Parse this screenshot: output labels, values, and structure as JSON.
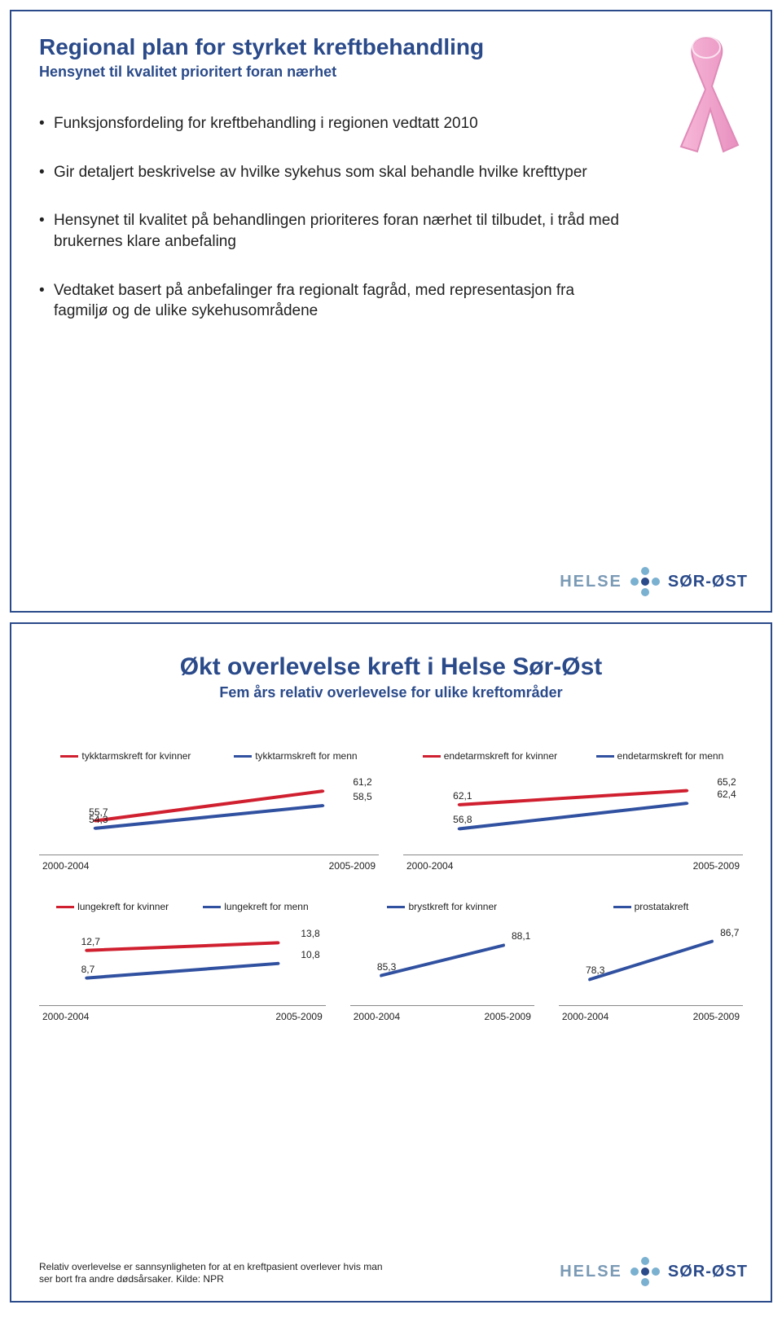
{
  "slide1": {
    "title": "Regional plan for styrket kreftbehandling",
    "subtitle": "Hensynet til kvalitet prioritert foran nærhet",
    "bullets": [
      "Funksjonsfordeling for kreftbehandling i regionen vedtatt 2010",
      "Gir detaljert beskrivelse av hvilke sykehus som skal behandle hvilke krefttyper",
      "Hensynet til kvalitet på behandlingen prioriteres foran nærhet til tilbudet, i tråd med brukernes klare anbefaling",
      "Vedtaket basert på anbefalinger fra regionalt fagråd, med representasjon fra fagmiljø og de ulike sykehusområdene"
    ],
    "ribbon_colors": {
      "fill": "#f7b8d8",
      "edge": "#e890c0",
      "shadow": "#c878a8"
    }
  },
  "slide2": {
    "title": "Økt overlevelse kreft i Helse Sør-Øst",
    "subtitle": "Fem års relativ overlevelse for ulike kreftområder",
    "x_labels": [
      "2000-2004",
      "2005-2009"
    ],
    "colors": {
      "red": "#d02030",
      "blue": "#3050a0",
      "axis": "#888888",
      "text": "#222222"
    },
    "line_width": 4,
    "font_size_label": 12,
    "row1": {
      "chartA": {
        "series": [
          {
            "name": "tykktarmskreft for kvinner",
            "color": "#d02030",
            "values": [
              55.7,
              61.2
            ]
          },
          {
            "name": "tykktarmskreft for menn",
            "color": "#3050a0",
            "values": [
              54.3,
              58.5
            ]
          }
        ]
      },
      "chartB": {
        "series": [
          {
            "name": "endetarmskreft for kvinner",
            "color": "#d02030",
            "values": [
              62.1,
              65.2
            ]
          },
          {
            "name": "endetarmskreft for menn",
            "color": "#3050a0",
            "values": [
              56.8,
              62.4
            ]
          }
        ]
      }
    },
    "row2": {
      "chartA": {
        "series": [
          {
            "name": "lungekreft for kvinner",
            "color": "#d02030",
            "values": [
              12.7,
              13.8
            ]
          },
          {
            "name": "lungekreft for menn",
            "color": "#3050a0",
            "values": [
              8.7,
              10.8
            ]
          }
        ]
      },
      "chartB": {
        "series": [
          {
            "name": "brystkreft for kvinner",
            "color": "#3050a0",
            "values": [
              85.3,
              88.1
            ]
          }
        ]
      },
      "chartC": {
        "series": [
          {
            "name": "prostatakreft",
            "color": "#3050a0",
            "values": [
              78.3,
              86.7
            ]
          }
        ]
      }
    },
    "footer": "Relativ overlevelse er sannsynligheten for at en kreftpasient overlever hvis man ser bort fra andre dødsårsaker.\nKilde: NPR"
  },
  "logo": {
    "left": "HELSE",
    "right": "SØR-ØST"
  }
}
